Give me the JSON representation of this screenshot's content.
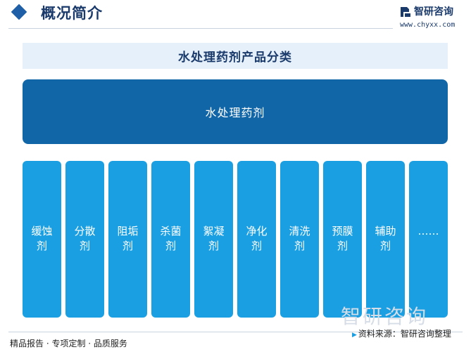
{
  "header": {
    "title": "概况简介",
    "brand_name": "智研咨询",
    "brand_url": "www.chyxx.com",
    "accent_color": "#1f5fa8"
  },
  "diagram": {
    "title": "水处理药剂产品分类",
    "root": "水处理药剂",
    "children": [
      "缓蚀剂",
      "分散剂",
      "阻垢剂",
      "杀菌剂",
      "絮凝剂",
      "净化剂",
      "清洗剂",
      "预膜剂",
      "辅助剂",
      "……"
    ],
    "root_color": "#1166a8",
    "child_color": "#1a9fe3"
  },
  "footer": {
    "left_text": "精品报告 · 专项定制 · 品质服务",
    "source_text": "资料来源：智研咨询整理",
    "watermark_text": "智研咨询"
  }
}
